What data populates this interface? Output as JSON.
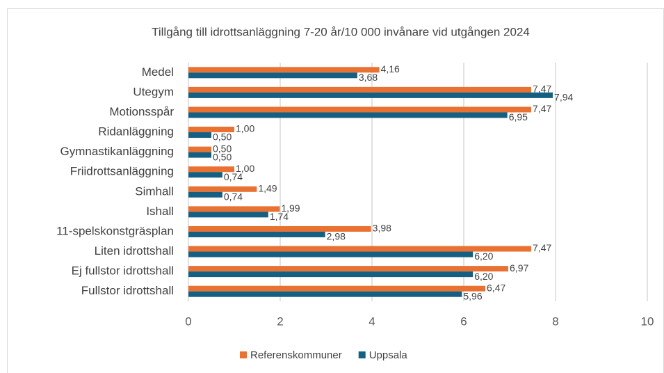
{
  "chart_data": {
    "type": "barh",
    "title": "Tillgång till idrottsanläggning 7-20 år/10 000 invånare vid utgången 2024",
    "categories": [
      "Medel",
      "Utegym",
      "Motionsspår",
      "Ridanläggning",
      "Gymnastikanläggning",
      "Friidrottsanläggning",
      "Simhall",
      "Ishall",
      "11-spelskonstgräsplan",
      "Liten idrottshall",
      "Ej fullstor idrottshall",
      "Fullstor idrottshall"
    ],
    "series": [
      {
        "name": "Referenskommuner",
        "color": "#E97132",
        "values": [
          4.16,
          7.47,
          7.47,
          1.0,
          0.5,
          1.0,
          1.49,
          1.99,
          3.98,
          7.47,
          6.97,
          6.47
        ],
        "value_labels": [
          "4,16",
          "7,47",
          "7,47",
          "1,00",
          "0,50",
          "1,00",
          "1,49",
          "1,99",
          "3,98",
          "7,47",
          "6,97",
          "6,47"
        ]
      },
      {
        "name": "Uppsala",
        "color": "#156082",
        "values": [
          3.68,
          7.94,
          6.95,
          0.5,
          0.5,
          0.74,
          0.74,
          1.74,
          2.98,
          6.2,
          6.2,
          5.96
        ],
        "value_labels": [
          "3,68",
          "7,94",
          "6,95",
          "0,50",
          "0,50",
          "0,74",
          "0,74",
          "1,74",
          "2,98",
          "6,20",
          "6,20",
          "5,96"
        ]
      }
    ],
    "xlim": [
      0,
      10
    ],
    "xticks": [
      0,
      2,
      4,
      6,
      8,
      10
    ],
    "grid": true,
    "legend": "bottom"
  }
}
